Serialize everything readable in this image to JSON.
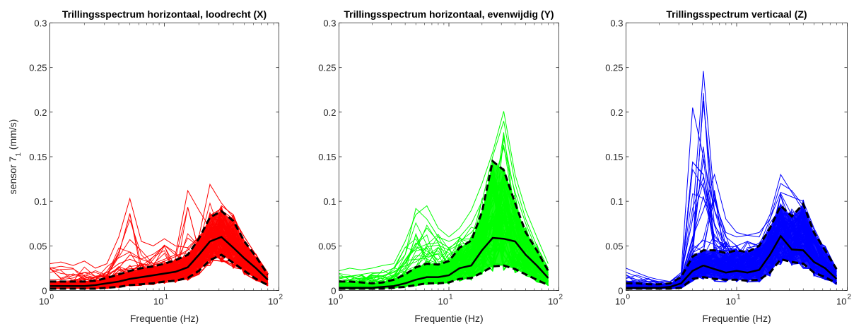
{
  "chart_data": [
    {
      "type": "line",
      "title": "Trillingsspectrum horizontaal, loodrecht (X)",
      "xlabel": "Frequentie (Hz)",
      "ylabel": "sensor 7",
      "ylabel_sub": "1",
      "ylabel_unit": " (mm/s)",
      "xscale": "log",
      "xlim": [
        1,
        100
      ],
      "ylim": [
        0,
        0.3
      ],
      "yticks": [
        "0",
        "0.05",
        "0.1",
        "0.15",
        "0.2",
        "0.25",
        "0.3"
      ],
      "xtick_labels": [
        {
          "base": "10",
          "exp": "0"
        },
        {
          "base": "10",
          "exp": "1"
        },
        {
          "base": "10",
          "exp": "2"
        }
      ],
      "grid": false,
      "color": "#ff0000",
      "x": [
        1,
        1.25,
        1.6,
        2,
        2.5,
        3.15,
        4,
        5,
        6.3,
        8,
        10,
        12.5,
        16,
        20,
        25,
        31.5,
        40,
        50,
        63,
        80
      ],
      "series": [
        {
          "role": "mean",
          "values": [
            0.005,
            0.005,
            0.005,
            0.005,
            0.006,
            0.008,
            0.01,
            0.013,
            0.015,
            0.017,
            0.019,
            0.021,
            0.026,
            0.04,
            0.055,
            0.06,
            0.048,
            0.036,
            0.025,
            0.012
          ]
        },
        {
          "role": "upper",
          "values": [
            0.01,
            0.01,
            0.01,
            0.01,
            0.011,
            0.014,
            0.018,
            0.022,
            0.025,
            0.027,
            0.03,
            0.034,
            0.04,
            0.058,
            0.082,
            0.089,
            0.078,
            0.055,
            0.038,
            0.018
          ]
        },
        {
          "role": "lower",
          "values": [
            0.002,
            0.002,
            0.002,
            0.002,
            0.002,
            0.003,
            0.004,
            0.006,
            0.007,
            0.008,
            0.01,
            0.011,
            0.014,
            0.022,
            0.034,
            0.04,
            0.031,
            0.022,
            0.013,
            0.006
          ]
        },
        {
          "role": "individual",
          "values": [
            0.03,
            0.032,
            0.028,
            0.033,
            0.025,
            0.03,
            0.06,
            0.103,
            0.055,
            0.05,
            0.058,
            0.05,
            0.048,
            0.06,
            0.076,
            0.09,
            0.08,
            0.06,
            0.04,
            0.02
          ]
        },
        {
          "role": "individual",
          "values": [
            0.012,
            0.012,
            0.014,
            0.02,
            0.016,
            0.018,
            0.025,
            0.04,
            0.035,
            0.03,
            0.035,
            0.04,
            0.112,
            0.09,
            0.07,
            0.095,
            0.085,
            0.055,
            0.035,
            0.018
          ]
        },
        {
          "role": "individual",
          "values": [
            0.01,
            0.01,
            0.011,
            0.012,
            0.014,
            0.02,
            0.03,
            0.035,
            0.03,
            0.028,
            0.033,
            0.038,
            0.045,
            0.06,
            0.119,
            0.098,
            0.082,
            0.06,
            0.04,
            0.02
          ]
        }
      ]
    },
    {
      "type": "line",
      "title": "Trillingsspectrum horizontaal, evenwijdig (Y)",
      "xlabel": "Frequentie (Hz)",
      "xscale": "log",
      "xlim": [
        1,
        100
      ],
      "ylim": [
        0,
        0.3
      ],
      "yticks": [
        "0",
        "0.05",
        "0.1",
        "0.15",
        "0.2",
        "0.25",
        "0.3"
      ],
      "xtick_labels": [
        {
          "base": "10",
          "exp": "0"
        },
        {
          "base": "10",
          "exp": "1"
        },
        {
          "base": "10",
          "exp": "2"
        }
      ],
      "grid": false,
      "color": "#00ff00",
      "x": [
        1,
        1.25,
        1.6,
        2,
        2.5,
        3.15,
        4,
        5,
        6.3,
        8,
        10,
        12.5,
        16,
        20,
        25,
        31.5,
        40,
        50,
        63,
        80
      ],
      "series": [
        {
          "role": "mean",
          "values": [
            0.003,
            0.003,
            0.003,
            0.003,
            0.004,
            0.005,
            0.008,
            0.012,
            0.015,
            0.015,
            0.017,
            0.025,
            0.028,
            0.045,
            0.059,
            0.058,
            0.055,
            0.04,
            0.028,
            0.014
          ]
        },
        {
          "role": "upper",
          "values": [
            0.01,
            0.01,
            0.009,
            0.008,
            0.009,
            0.012,
            0.018,
            0.026,
            0.03,
            0.029,
            0.033,
            0.048,
            0.056,
            0.088,
            0.145,
            0.135,
            0.098,
            0.065,
            0.045,
            0.022
          ]
        },
        {
          "role": "lower",
          "values": [
            0.002,
            0.002,
            0.002,
            0.002,
            0.002,
            0.003,
            0.004,
            0.006,
            0.008,
            0.008,
            0.009,
            0.013,
            0.014,
            0.02,
            0.027,
            0.028,
            0.024,
            0.018,
            0.012,
            0.006
          ]
        },
        {
          "role": "individual",
          "values": [
            0.022,
            0.025,
            0.023,
            0.025,
            0.028,
            0.03,
            0.055,
            0.085,
            0.095,
            0.07,
            0.06,
            0.07,
            0.09,
            0.12,
            0.155,
            0.201,
            0.13,
            0.09,
            0.06,
            0.03
          ]
        },
        {
          "role": "individual",
          "values": [
            0.015,
            0.016,
            0.018,
            0.02,
            0.02,
            0.025,
            0.04,
            0.092,
            0.08,
            0.06,
            0.055,
            0.06,
            0.075,
            0.1,
            0.15,
            0.19,
            0.12,
            0.08,
            0.05,
            0.025
          ]
        },
        {
          "role": "individual",
          "values": [
            0.01,
            0.012,
            0.014,
            0.015,
            0.016,
            0.02,
            0.03,
            0.05,
            0.07,
            0.055,
            0.048,
            0.055,
            0.065,
            0.08,
            0.12,
            0.16,
            0.11,
            0.075,
            0.045,
            0.022
          ]
        }
      ]
    },
    {
      "type": "line",
      "title": "Trillingsspectrum verticaal (Z)",
      "xlabel": "Frequentie (Hz)",
      "xscale": "log",
      "xlim": [
        1,
        100
      ],
      "ylim": [
        0,
        0.3
      ],
      "yticks": [
        "0",
        "0.05",
        "0.1",
        "0.15",
        "0.2",
        "0.25",
        "0.3"
      ],
      "xtick_labels": [
        {
          "base": "10",
          "exp": "0"
        },
        {
          "base": "10",
          "exp": "1"
        },
        {
          "base": "10",
          "exp": "2"
        }
      ],
      "grid": false,
      "color": "#0000ff",
      "x": [
        1,
        1.25,
        1.6,
        2,
        2.5,
        3.15,
        4,
        5,
        6.3,
        8,
        10,
        12.5,
        16,
        20,
        25,
        31.5,
        40,
        50,
        63,
        80
      ],
      "series": [
        {
          "role": "mean",
          "values": [
            0.003,
            0.003,
            0.003,
            0.003,
            0.004,
            0.008,
            0.022,
            0.028,
            0.024,
            0.02,
            0.022,
            0.02,
            0.023,
            0.04,
            0.061,
            0.046,
            0.045,
            0.032,
            0.025,
            0.013
          ]
        },
        {
          "role": "upper",
          "values": [
            0.008,
            0.008,
            0.007,
            0.007,
            0.008,
            0.015,
            0.038,
            0.045,
            0.045,
            0.042,
            0.045,
            0.043,
            0.05,
            0.07,
            0.095,
            0.083,
            0.097,
            0.065,
            0.045,
            0.024
          ]
        },
        {
          "role": "lower",
          "values": [
            0.002,
            0.002,
            0.002,
            0.002,
            0.002,
            0.003,
            0.013,
            0.015,
            0.013,
            0.012,
            0.012,
            0.011,
            0.012,
            0.02,
            0.035,
            0.032,
            0.03,
            0.02,
            0.015,
            0.008
          ]
        },
        {
          "role": "individual",
          "values": [
            0.025,
            0.02,
            0.015,
            0.012,
            0.01,
            0.02,
            0.205,
            0.15,
            0.09,
            0.06,
            0.05,
            0.055,
            0.05,
            0.08,
            0.11,
            0.105,
            0.1,
            0.07,
            0.045,
            0.025
          ]
        },
        {
          "role": "individual",
          "values": [
            0.015,
            0.012,
            0.01,
            0.01,
            0.01,
            0.018,
            0.08,
            0.246,
            0.1,
            0.065,
            0.06,
            0.062,
            0.06,
            0.085,
            0.13,
            0.11,
            0.09,
            0.06,
            0.04,
            0.022
          ]
        },
        {
          "role": "individual",
          "values": [
            0.01,
            0.01,
            0.01,
            0.01,
            0.01,
            0.015,
            0.06,
            0.09,
            0.13,
            0.08,
            0.065,
            0.062,
            0.065,
            0.08,
            0.12,
            0.112,
            0.095,
            0.068,
            0.042,
            0.02
          ]
        }
      ]
    }
  ]
}
